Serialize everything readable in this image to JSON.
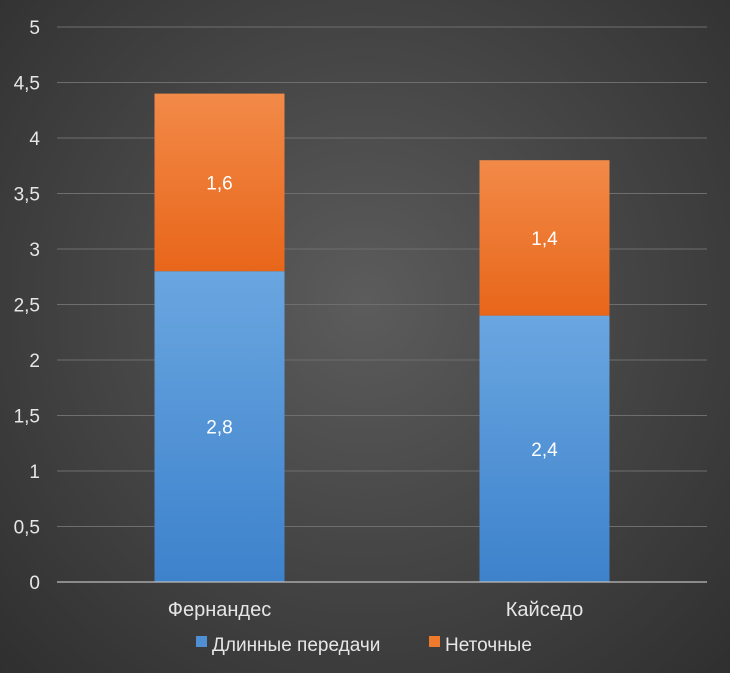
{
  "chart_data": {
    "type": "bar",
    "stacked": true,
    "title": "",
    "xlabel": "",
    "ylabel": "",
    "categories": [
      "Фернандес",
      "Кайседо"
    ],
    "series": [
      {
        "name": "Длинные передачи",
        "values": [
          2.8,
          2.4
        ],
        "labels": [
          "2,8",
          "2,4"
        ],
        "color": "#4f8fd4"
      },
      {
        "name": "Неточные",
        "values": [
          1.6,
          1.4
        ],
        "labels": [
          "1,6",
          "1,4"
        ],
        "color": "#f07a2c"
      }
    ],
    "ylim": [
      0,
      5
    ],
    "yticks": [
      0,
      0.5,
      1,
      1.5,
      2,
      2.5,
      3,
      3.5,
      4,
      4.5,
      5
    ],
    "ytick_labels": [
      "0",
      "0,5",
      "1",
      "1,5",
      "2",
      "2,5",
      "3",
      "3,5",
      "4",
      "4,5",
      "5"
    ],
    "grid": true,
    "legend": "bottom"
  }
}
